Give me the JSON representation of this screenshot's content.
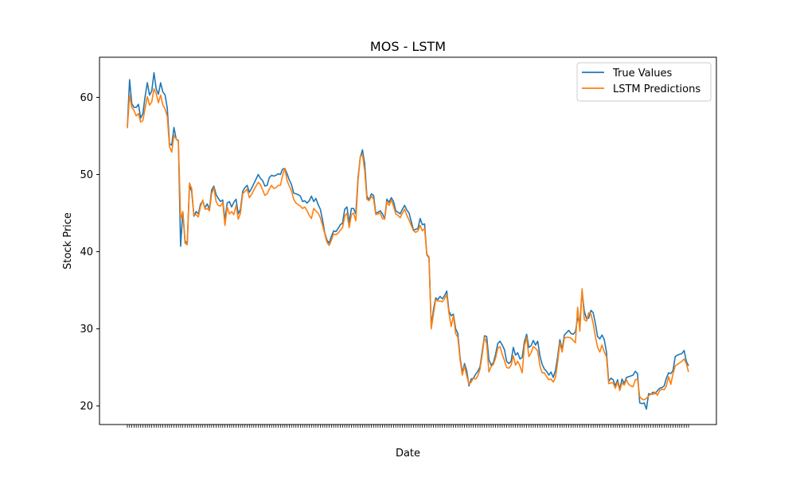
{
  "chart_data": {
    "type": "line",
    "title": "MOS - LSTM",
    "xlabel": "Date",
    "ylabel": "Stock Price",
    "ylim": [
      17.6,
      65.2
    ],
    "yticks": [
      20,
      30,
      40,
      50,
      60
    ],
    "grid": false,
    "legend_position": "top-right",
    "colors": {
      "true": "#1f77b4",
      "pred": "#ff7f0e"
    },
    "series": [
      {
        "name": "True Values",
        "key": "true",
        "values": [
          56.2,
          62.3,
          59.2,
          58.7,
          58.7,
          59.1,
          57.3,
          57.9,
          60.1,
          61.9,
          60.3,
          60.8,
          63.2,
          61.1,
          60.4,
          61.9,
          60.7,
          60.3,
          58.6,
          54.0,
          53.8,
          56.1,
          54.6,
          54.4,
          40.7,
          45.2,
          41.4,
          41.1,
          48.5,
          47.8,
          44.6,
          45.2,
          44.9,
          46.2,
          46.5,
          45.7,
          46.2,
          45.5,
          48.0,
          48.5,
          47.4,
          46.9,
          46.5,
          46.7,
          44.1,
          46.3,
          46.5,
          45.8,
          46.4,
          46.8,
          44.9,
          45.5,
          47.8,
          48.3,
          48.6,
          47.7,
          48.2,
          48.8,
          49.4,
          50.0,
          49.5,
          49.2,
          48.5,
          48.6,
          49.6,
          49.9,
          49.8,
          49.9,
          50.1,
          50.0,
          50.7,
          50.8,
          50.1,
          49.3,
          48.7,
          47.6,
          47.5,
          47.4,
          47.2,
          46.5,
          46.6,
          46.3,
          46.6,
          47.2,
          46.5,
          46.9,
          46.1,
          45.5,
          44.1,
          42.4,
          41.5,
          41.1,
          42.0,
          42.7,
          42.6,
          43.0,
          43.5,
          43.7,
          45.5,
          45.8,
          43.8,
          45.6,
          45.6,
          44.9,
          49.6,
          52.2,
          53.2,
          51.4,
          47.2,
          46.7,
          47.5,
          47.3,
          45.0,
          45.1,
          45.3,
          44.9,
          44.3,
          46.8,
          46.4,
          47.0,
          46.5,
          45.3,
          45.1,
          44.9,
          45.5,
          46.0,
          45.4,
          45.0,
          43.9,
          42.8,
          42.9,
          43.0,
          44.3,
          43.5,
          43.6,
          39.6,
          39.2,
          30.3,
          32.5,
          34.0,
          33.8,
          34.2,
          33.9,
          34.3,
          34.9,
          32.3,
          31.7,
          31.9,
          30.0,
          29.4,
          26.3,
          24.3,
          25.5,
          24.6,
          22.6,
          23.5,
          23.6,
          24.1,
          24.5,
          25.1,
          27.1,
          29.1,
          29.0,
          26.0,
          25.3,
          25.6,
          26.7,
          28.1,
          28.4,
          27.9,
          27.3,
          25.8,
          25.5,
          25.8,
          27.6,
          26.6,
          26.9,
          26.1,
          26.3,
          28.3,
          29.3,
          27.6,
          27.8,
          28.5,
          27.9,
          28.4,
          26.5,
          25.4,
          24.8,
          24.5,
          24.0,
          24.4,
          23.7,
          24.6,
          26.4,
          28.6,
          27.3,
          29.2,
          29.5,
          29.8,
          29.4,
          29.3,
          29.6,
          31.4,
          30.8,
          34.9,
          32.3,
          31.3,
          31.4,
          32.4,
          32.1,
          30.7,
          29.0,
          28.7,
          29.2,
          28.6,
          27.0,
          23.2,
          23.6,
          23.4,
          22.6,
          23.4,
          22.2,
          23.5,
          22.9,
          23.7,
          23.8,
          23.9,
          24.0,
          24.5,
          24.2,
          20.4,
          20.3,
          20.4,
          19.6,
          21.6,
          21.5,
          21.8,
          21.6,
          22.0,
          22.3,
          22.4,
          22.6,
          23.6,
          24.3,
          24.2,
          24.6,
          26.4,
          26.6,
          26.7,
          26.8,
          27.2,
          25.8,
          25.2
        ]
      },
      {
        "name": "LSTM Predictions",
        "key": "pred",
        "values": [
          56.0,
          60.3,
          58.7,
          58.3,
          57.6,
          57.9,
          56.8,
          57.0,
          58.6,
          60.1,
          59.0,
          59.4,
          61.1,
          60.5,
          59.3,
          60.3,
          59.0,
          58.5,
          57.5,
          53.6,
          52.9,
          55.1,
          54.6,
          54.3,
          44.3,
          45.2,
          41.1,
          40.9,
          48.9,
          48.2,
          44.7,
          44.8,
          44.5,
          45.9,
          46.7,
          45.5,
          45.6,
          45.3,
          47.5,
          48.3,
          46.5,
          46.0,
          45.9,
          46.4,
          43.4,
          45.8,
          44.9,
          45.2,
          44.8,
          46.0,
          44.2,
          45.0,
          47.5,
          47.8,
          48.1,
          47.0,
          47.4,
          48.0,
          48.5,
          49.0,
          48.7,
          48.0,
          47.3,
          47.5,
          48.1,
          48.6,
          48.2,
          48.3,
          48.6,
          48.6,
          49.9,
          50.8,
          49.2,
          48.5,
          47.9,
          46.8,
          46.3,
          46.1,
          45.9,
          45.6,
          45.8,
          45.3,
          44.7,
          44.3,
          45.6,
          45.3,
          45.0,
          44.4,
          43.4,
          42.3,
          41.2,
          40.8,
          41.5,
          42.3,
          42.2,
          42.4,
          42.8,
          43.1,
          44.6,
          45.0,
          43.1,
          44.8,
          45.0,
          44.0,
          49.2,
          52.3,
          52.6,
          50.5,
          46.8,
          46.6,
          47.2,
          46.8,
          44.8,
          44.9,
          45.0,
          44.3,
          44.2,
          46.5,
          46.0,
          46.7,
          45.9,
          44.9,
          44.7,
          44.4,
          45.0,
          45.5,
          44.7,
          44.1,
          43.4,
          42.7,
          42.5,
          42.7,
          43.4,
          42.7,
          43.0,
          39.7,
          39.3,
          30.0,
          31.9,
          33.8,
          33.6,
          33.6,
          33.5,
          33.9,
          34.4,
          32.0,
          30.3,
          31.7,
          29.4,
          28.9,
          26.0,
          24.0,
          25.2,
          23.9,
          22.8,
          23.1,
          23.6,
          23.5,
          23.9,
          24.8,
          26.7,
          28.9,
          28.1,
          24.4,
          25.1,
          25.4,
          26.2,
          27.5,
          27.7,
          26.7,
          25.9,
          25.0,
          24.9,
          25.3,
          26.5,
          25.3,
          25.8,
          25.2,
          24.3,
          27.8,
          28.9,
          26.4,
          26.9,
          27.7,
          27.5,
          27.1,
          25.2,
          24.3,
          24.3,
          23.8,
          23.4,
          23.5,
          23.1,
          23.7,
          25.7,
          28.2,
          27.0,
          28.8,
          28.9,
          28.9,
          28.8,
          28.5,
          28.2,
          32.8,
          29.7,
          35.2,
          31.2,
          31.0,
          32.1,
          31.9,
          30.7,
          29.0,
          27.6,
          27.0,
          27.9,
          27.0,
          26.4,
          22.9,
          23.0,
          23.0,
          22.3,
          23.1,
          22.0,
          23.0,
          22.7,
          23.4,
          22.8,
          22.6,
          22.5,
          23.4,
          23.5,
          21.2,
          20.9,
          20.8,
          21.0,
          21.3,
          21.6,
          21.5,
          21.8,
          21.4,
          22.0,
          22.2,
          22.1,
          22.6,
          23.8,
          22.8,
          24.2,
          25.2,
          25.4,
          25.6,
          25.8,
          26.1,
          25.5,
          24.4
        ]
      }
    ]
  }
}
